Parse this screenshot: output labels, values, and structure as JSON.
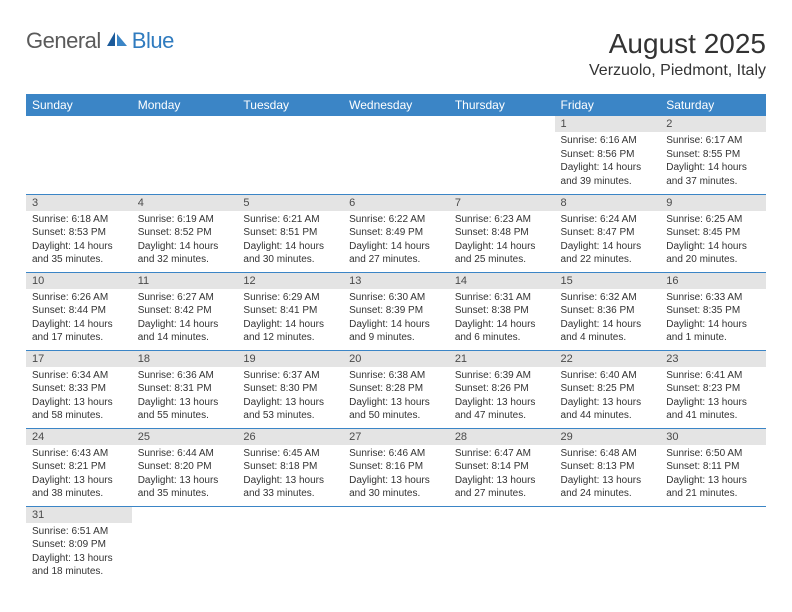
{
  "logo": {
    "general": "General",
    "blue": "Blue"
  },
  "title": "August 2025",
  "location": "Verzuolo, Piedmont, Italy",
  "colors": {
    "header_bg": "#3b85c6",
    "header_text": "#ffffff",
    "daynum_bg": "#e4e4e4",
    "daynum_text": "#4a4a4a",
    "text": "#333333",
    "logo_gray": "#5a5a5a",
    "logo_blue": "#2f7bbf",
    "border": "#3b85c6"
  },
  "weekdays": [
    "Sunday",
    "Monday",
    "Tuesday",
    "Wednesday",
    "Thursday",
    "Friday",
    "Saturday"
  ],
  "weeks": [
    [
      {
        "blank": true
      },
      {
        "blank": true
      },
      {
        "blank": true
      },
      {
        "blank": true
      },
      {
        "blank": true
      },
      {
        "day": "1",
        "sunrise": "Sunrise: 6:16 AM",
        "sunset": "Sunset: 8:56 PM",
        "daylight": "Daylight: 14 hours and 39 minutes."
      },
      {
        "day": "2",
        "sunrise": "Sunrise: 6:17 AM",
        "sunset": "Sunset: 8:55 PM",
        "daylight": "Daylight: 14 hours and 37 minutes."
      }
    ],
    [
      {
        "day": "3",
        "sunrise": "Sunrise: 6:18 AM",
        "sunset": "Sunset: 8:53 PM",
        "daylight": "Daylight: 14 hours and 35 minutes."
      },
      {
        "day": "4",
        "sunrise": "Sunrise: 6:19 AM",
        "sunset": "Sunset: 8:52 PM",
        "daylight": "Daylight: 14 hours and 32 minutes."
      },
      {
        "day": "5",
        "sunrise": "Sunrise: 6:21 AM",
        "sunset": "Sunset: 8:51 PM",
        "daylight": "Daylight: 14 hours and 30 minutes."
      },
      {
        "day": "6",
        "sunrise": "Sunrise: 6:22 AM",
        "sunset": "Sunset: 8:49 PM",
        "daylight": "Daylight: 14 hours and 27 minutes."
      },
      {
        "day": "7",
        "sunrise": "Sunrise: 6:23 AM",
        "sunset": "Sunset: 8:48 PM",
        "daylight": "Daylight: 14 hours and 25 minutes."
      },
      {
        "day": "8",
        "sunrise": "Sunrise: 6:24 AM",
        "sunset": "Sunset: 8:47 PM",
        "daylight": "Daylight: 14 hours and 22 minutes."
      },
      {
        "day": "9",
        "sunrise": "Sunrise: 6:25 AM",
        "sunset": "Sunset: 8:45 PM",
        "daylight": "Daylight: 14 hours and 20 minutes."
      }
    ],
    [
      {
        "day": "10",
        "sunrise": "Sunrise: 6:26 AM",
        "sunset": "Sunset: 8:44 PM",
        "daylight": "Daylight: 14 hours and 17 minutes."
      },
      {
        "day": "11",
        "sunrise": "Sunrise: 6:27 AM",
        "sunset": "Sunset: 8:42 PM",
        "daylight": "Daylight: 14 hours and 14 minutes."
      },
      {
        "day": "12",
        "sunrise": "Sunrise: 6:29 AM",
        "sunset": "Sunset: 8:41 PM",
        "daylight": "Daylight: 14 hours and 12 minutes."
      },
      {
        "day": "13",
        "sunrise": "Sunrise: 6:30 AM",
        "sunset": "Sunset: 8:39 PM",
        "daylight": "Daylight: 14 hours and 9 minutes."
      },
      {
        "day": "14",
        "sunrise": "Sunrise: 6:31 AM",
        "sunset": "Sunset: 8:38 PM",
        "daylight": "Daylight: 14 hours and 6 minutes."
      },
      {
        "day": "15",
        "sunrise": "Sunrise: 6:32 AM",
        "sunset": "Sunset: 8:36 PM",
        "daylight": "Daylight: 14 hours and 4 minutes."
      },
      {
        "day": "16",
        "sunrise": "Sunrise: 6:33 AM",
        "sunset": "Sunset: 8:35 PM",
        "daylight": "Daylight: 14 hours and 1 minute."
      }
    ],
    [
      {
        "day": "17",
        "sunrise": "Sunrise: 6:34 AM",
        "sunset": "Sunset: 8:33 PM",
        "daylight": "Daylight: 13 hours and 58 minutes."
      },
      {
        "day": "18",
        "sunrise": "Sunrise: 6:36 AM",
        "sunset": "Sunset: 8:31 PM",
        "daylight": "Daylight: 13 hours and 55 minutes."
      },
      {
        "day": "19",
        "sunrise": "Sunrise: 6:37 AM",
        "sunset": "Sunset: 8:30 PM",
        "daylight": "Daylight: 13 hours and 53 minutes."
      },
      {
        "day": "20",
        "sunrise": "Sunrise: 6:38 AM",
        "sunset": "Sunset: 8:28 PM",
        "daylight": "Daylight: 13 hours and 50 minutes."
      },
      {
        "day": "21",
        "sunrise": "Sunrise: 6:39 AM",
        "sunset": "Sunset: 8:26 PM",
        "daylight": "Daylight: 13 hours and 47 minutes."
      },
      {
        "day": "22",
        "sunrise": "Sunrise: 6:40 AM",
        "sunset": "Sunset: 8:25 PM",
        "daylight": "Daylight: 13 hours and 44 minutes."
      },
      {
        "day": "23",
        "sunrise": "Sunrise: 6:41 AM",
        "sunset": "Sunset: 8:23 PM",
        "daylight": "Daylight: 13 hours and 41 minutes."
      }
    ],
    [
      {
        "day": "24",
        "sunrise": "Sunrise: 6:43 AM",
        "sunset": "Sunset: 8:21 PM",
        "daylight": "Daylight: 13 hours and 38 minutes."
      },
      {
        "day": "25",
        "sunrise": "Sunrise: 6:44 AM",
        "sunset": "Sunset: 8:20 PM",
        "daylight": "Daylight: 13 hours and 35 minutes."
      },
      {
        "day": "26",
        "sunrise": "Sunrise: 6:45 AM",
        "sunset": "Sunset: 8:18 PM",
        "daylight": "Daylight: 13 hours and 33 minutes."
      },
      {
        "day": "27",
        "sunrise": "Sunrise: 6:46 AM",
        "sunset": "Sunset: 8:16 PM",
        "daylight": "Daylight: 13 hours and 30 minutes."
      },
      {
        "day": "28",
        "sunrise": "Sunrise: 6:47 AM",
        "sunset": "Sunset: 8:14 PM",
        "daylight": "Daylight: 13 hours and 27 minutes."
      },
      {
        "day": "29",
        "sunrise": "Sunrise: 6:48 AM",
        "sunset": "Sunset: 8:13 PM",
        "daylight": "Daylight: 13 hours and 24 minutes."
      },
      {
        "day": "30",
        "sunrise": "Sunrise: 6:50 AM",
        "sunset": "Sunset: 8:11 PM",
        "daylight": "Daylight: 13 hours and 21 minutes."
      }
    ],
    [
      {
        "day": "31",
        "sunrise": "Sunrise: 6:51 AM",
        "sunset": "Sunset: 8:09 PM",
        "daylight": "Daylight: 13 hours and 18 minutes."
      },
      {
        "blank": true
      },
      {
        "blank": true
      },
      {
        "blank": true
      },
      {
        "blank": true
      },
      {
        "blank": true
      },
      {
        "blank": true
      }
    ]
  ]
}
